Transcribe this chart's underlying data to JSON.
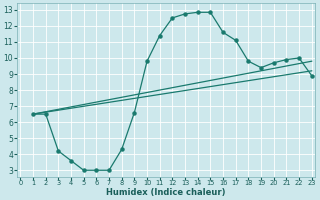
{
  "xlabel": "Humidex (Indice chaleur)",
  "bg_color": "#cde8ec",
  "grid_color": "#ffffff",
  "line_color": "#1a7a6e",
  "xlim": [
    -0.3,
    23.3
  ],
  "ylim": [
    2.6,
    13.4
  ],
  "xticks": [
    0,
    1,
    2,
    3,
    4,
    5,
    6,
    7,
    8,
    9,
    10,
    11,
    12,
    13,
    14,
    15,
    16,
    17,
    18,
    19,
    20,
    21,
    22,
    23
  ],
  "yticks": [
    3,
    4,
    5,
    6,
    7,
    8,
    9,
    10,
    11,
    12,
    13
  ],
  "main_x": [
    1,
    2,
    3,
    4,
    5,
    6,
    7,
    8,
    9,
    10,
    11,
    12,
    13,
    14,
    15,
    16,
    17,
    18,
    19,
    20,
    21,
    22,
    23
  ],
  "main_y": [
    6.5,
    6.5,
    4.2,
    3.6,
    3.0,
    3.0,
    3.0,
    4.3,
    6.6,
    9.8,
    11.4,
    12.5,
    12.75,
    12.85,
    12.85,
    11.6,
    11.1,
    9.8,
    9.4,
    9.7,
    9.9,
    10.0,
    8.9
  ],
  "line1_x": [
    1,
    23
  ],
  "line1_y": [
    6.5,
    9.8
  ],
  "line2_x": [
    1,
    23
  ],
  "line2_y": [
    6.5,
    9.2
  ]
}
